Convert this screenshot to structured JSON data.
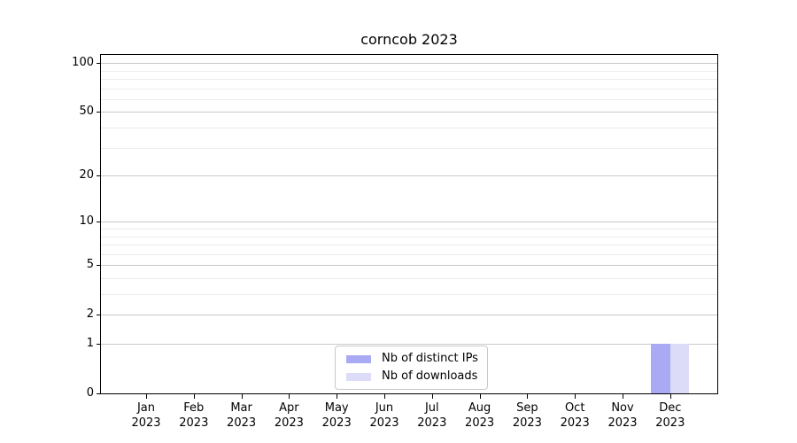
{
  "title": "corncob 2023",
  "chart_data": {
    "type": "bar",
    "title": "corncob 2023",
    "categories": [
      {
        "month": "Jan",
        "year": "2023"
      },
      {
        "month": "Feb",
        "year": "2023"
      },
      {
        "month": "Mar",
        "year": "2023"
      },
      {
        "month": "Apr",
        "year": "2023"
      },
      {
        "month": "May",
        "year": "2023"
      },
      {
        "month": "Jun",
        "year": "2023"
      },
      {
        "month": "Jul",
        "year": "2023"
      },
      {
        "month": "Aug",
        "year": "2023"
      },
      {
        "month": "Sep",
        "year": "2023"
      },
      {
        "month": "Oct",
        "year": "2023"
      },
      {
        "month": "Nov",
        "year": "2023"
      },
      {
        "month": "Dec",
        "year": "2023"
      }
    ],
    "series": [
      {
        "name": "Nb of distinct IPs",
        "color": "#a9a9f4",
        "values": [
          0,
          0,
          0,
          0,
          0,
          0,
          0,
          0,
          0,
          0,
          0,
          1
        ]
      },
      {
        "name": "Nb of downloads",
        "color": "#dcdcf9",
        "values": [
          0,
          0,
          0,
          0,
          0,
          0,
          0,
          0,
          0,
          0,
          0,
          1
        ]
      }
    ],
    "xlabel": "",
    "ylabel": "",
    "y_axis": {
      "scale": "log1p",
      "ticks": [
        0,
        1,
        2,
        5,
        10,
        20,
        50,
        100
      ],
      "minor_ticks": [
        3,
        4,
        6,
        7,
        8,
        9,
        30,
        40,
        60,
        70,
        80,
        90
      ],
      "max": 112
    },
    "legend": {
      "position": "lower center"
    },
    "grid": {
      "major_color": "#c9c9c9",
      "minor_color": "#ececec"
    }
  }
}
